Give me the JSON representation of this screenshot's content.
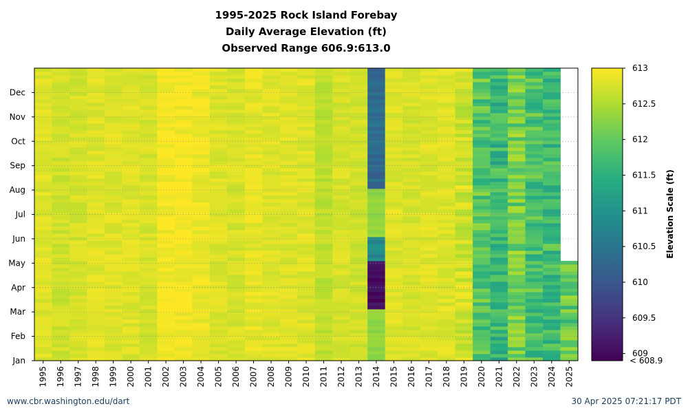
{
  "chart_data": {
    "type": "heatmap",
    "title": [
      "1995-2025 Rock Island Forebay",
      "Daily Average Elevation (ft)",
      "Observed Range 606.9:613.0"
    ],
    "xlabel": "",
    "ylabel": "",
    "years": [
      1995,
      1996,
      1997,
      1998,
      1999,
      2000,
      2001,
      2002,
      2003,
      2004,
      2005,
      2006,
      2007,
      2008,
      2009,
      2010,
      2011,
      2012,
      2013,
      2014,
      2015,
      2016,
      2017,
      2018,
      2019,
      2020,
      2021,
      2022,
      2023,
      2024,
      2025
    ],
    "months": [
      "Jan",
      "Feb",
      "Mar",
      "Apr",
      "May",
      "Jun",
      "Jul",
      "Aug",
      "Sep",
      "Oct",
      "Nov",
      "Dec"
    ],
    "colorbar": {
      "label": "Elevation Scale (ft)",
      "ticks": [
        "613",
        "612.5",
        "612",
        "611.5",
        "611",
        "610.5",
        "610",
        "609.5",
        "609"
      ],
      "under_label": "< 608.9",
      "range": [
        608.9,
        613.0
      ]
    },
    "typical_elevation_by_year": [
      {
        "year": 1995,
        "mean": 612.8
      },
      {
        "year": 1996,
        "mean": 612.7
      },
      {
        "year": 1997,
        "mean": 612.75
      },
      {
        "year": 1998,
        "mean": 612.8
      },
      {
        "year": 1999,
        "mean": 612.8
      },
      {
        "year": 2000,
        "mean": 612.8
      },
      {
        "year": 2001,
        "mean": 612.75
      },
      {
        "year": 2002,
        "mean": 612.95
      },
      {
        "year": 2003,
        "mean": 612.95
      },
      {
        "year": 2004,
        "mean": 612.9
      },
      {
        "year": 2005,
        "mean": 612.8
      },
      {
        "year": 2006,
        "mean": 612.75
      },
      {
        "year": 2007,
        "mean": 612.85
      },
      {
        "year": 2008,
        "mean": 612.8
      },
      {
        "year": 2009,
        "mean": 612.8
      },
      {
        "year": 2010,
        "mean": 612.8
      },
      {
        "year": 2011,
        "mean": 612.6
      },
      {
        "year": 2012,
        "mean": 612.75
      },
      {
        "year": 2013,
        "mean": 612.7
      },
      {
        "year": 2014,
        "mean": 612.3
      },
      {
        "year": 2015,
        "mean": 612.8
      },
      {
        "year": 2016,
        "mean": 612.75
      },
      {
        "year": 2017,
        "mean": 612.8
      },
      {
        "year": 2018,
        "mean": 612.8
      },
      {
        "year": 2019,
        "mean": 612.7
      },
      {
        "year": 2020,
        "mean": 611.9
      },
      {
        "year": 2021,
        "mean": 611.6
      },
      {
        "year": 2022,
        "mean": 612.1
      },
      {
        "year": 2023,
        "mean": 611.8
      },
      {
        "year": 2024,
        "mean": 611.7
      },
      {
        "year": 2025,
        "mean": 612.0
      }
    ],
    "notable_periods": [
      {
        "year": 2014,
        "months": "Mar-Apr",
        "elevation": 609.0
      },
      {
        "year": 2014,
        "months": "Aug-Dec",
        "elevation": 610.3
      },
      {
        "year": 2014,
        "months": "May",
        "elevation": 610.8
      },
      {
        "year": 2025,
        "months": "May-Dec",
        "elevation": null
      }
    ]
  },
  "footer": {
    "source": "www.cbr.washington.edu/dart",
    "timestamp": "30 Apr 2025 07:21:17 PDT"
  }
}
